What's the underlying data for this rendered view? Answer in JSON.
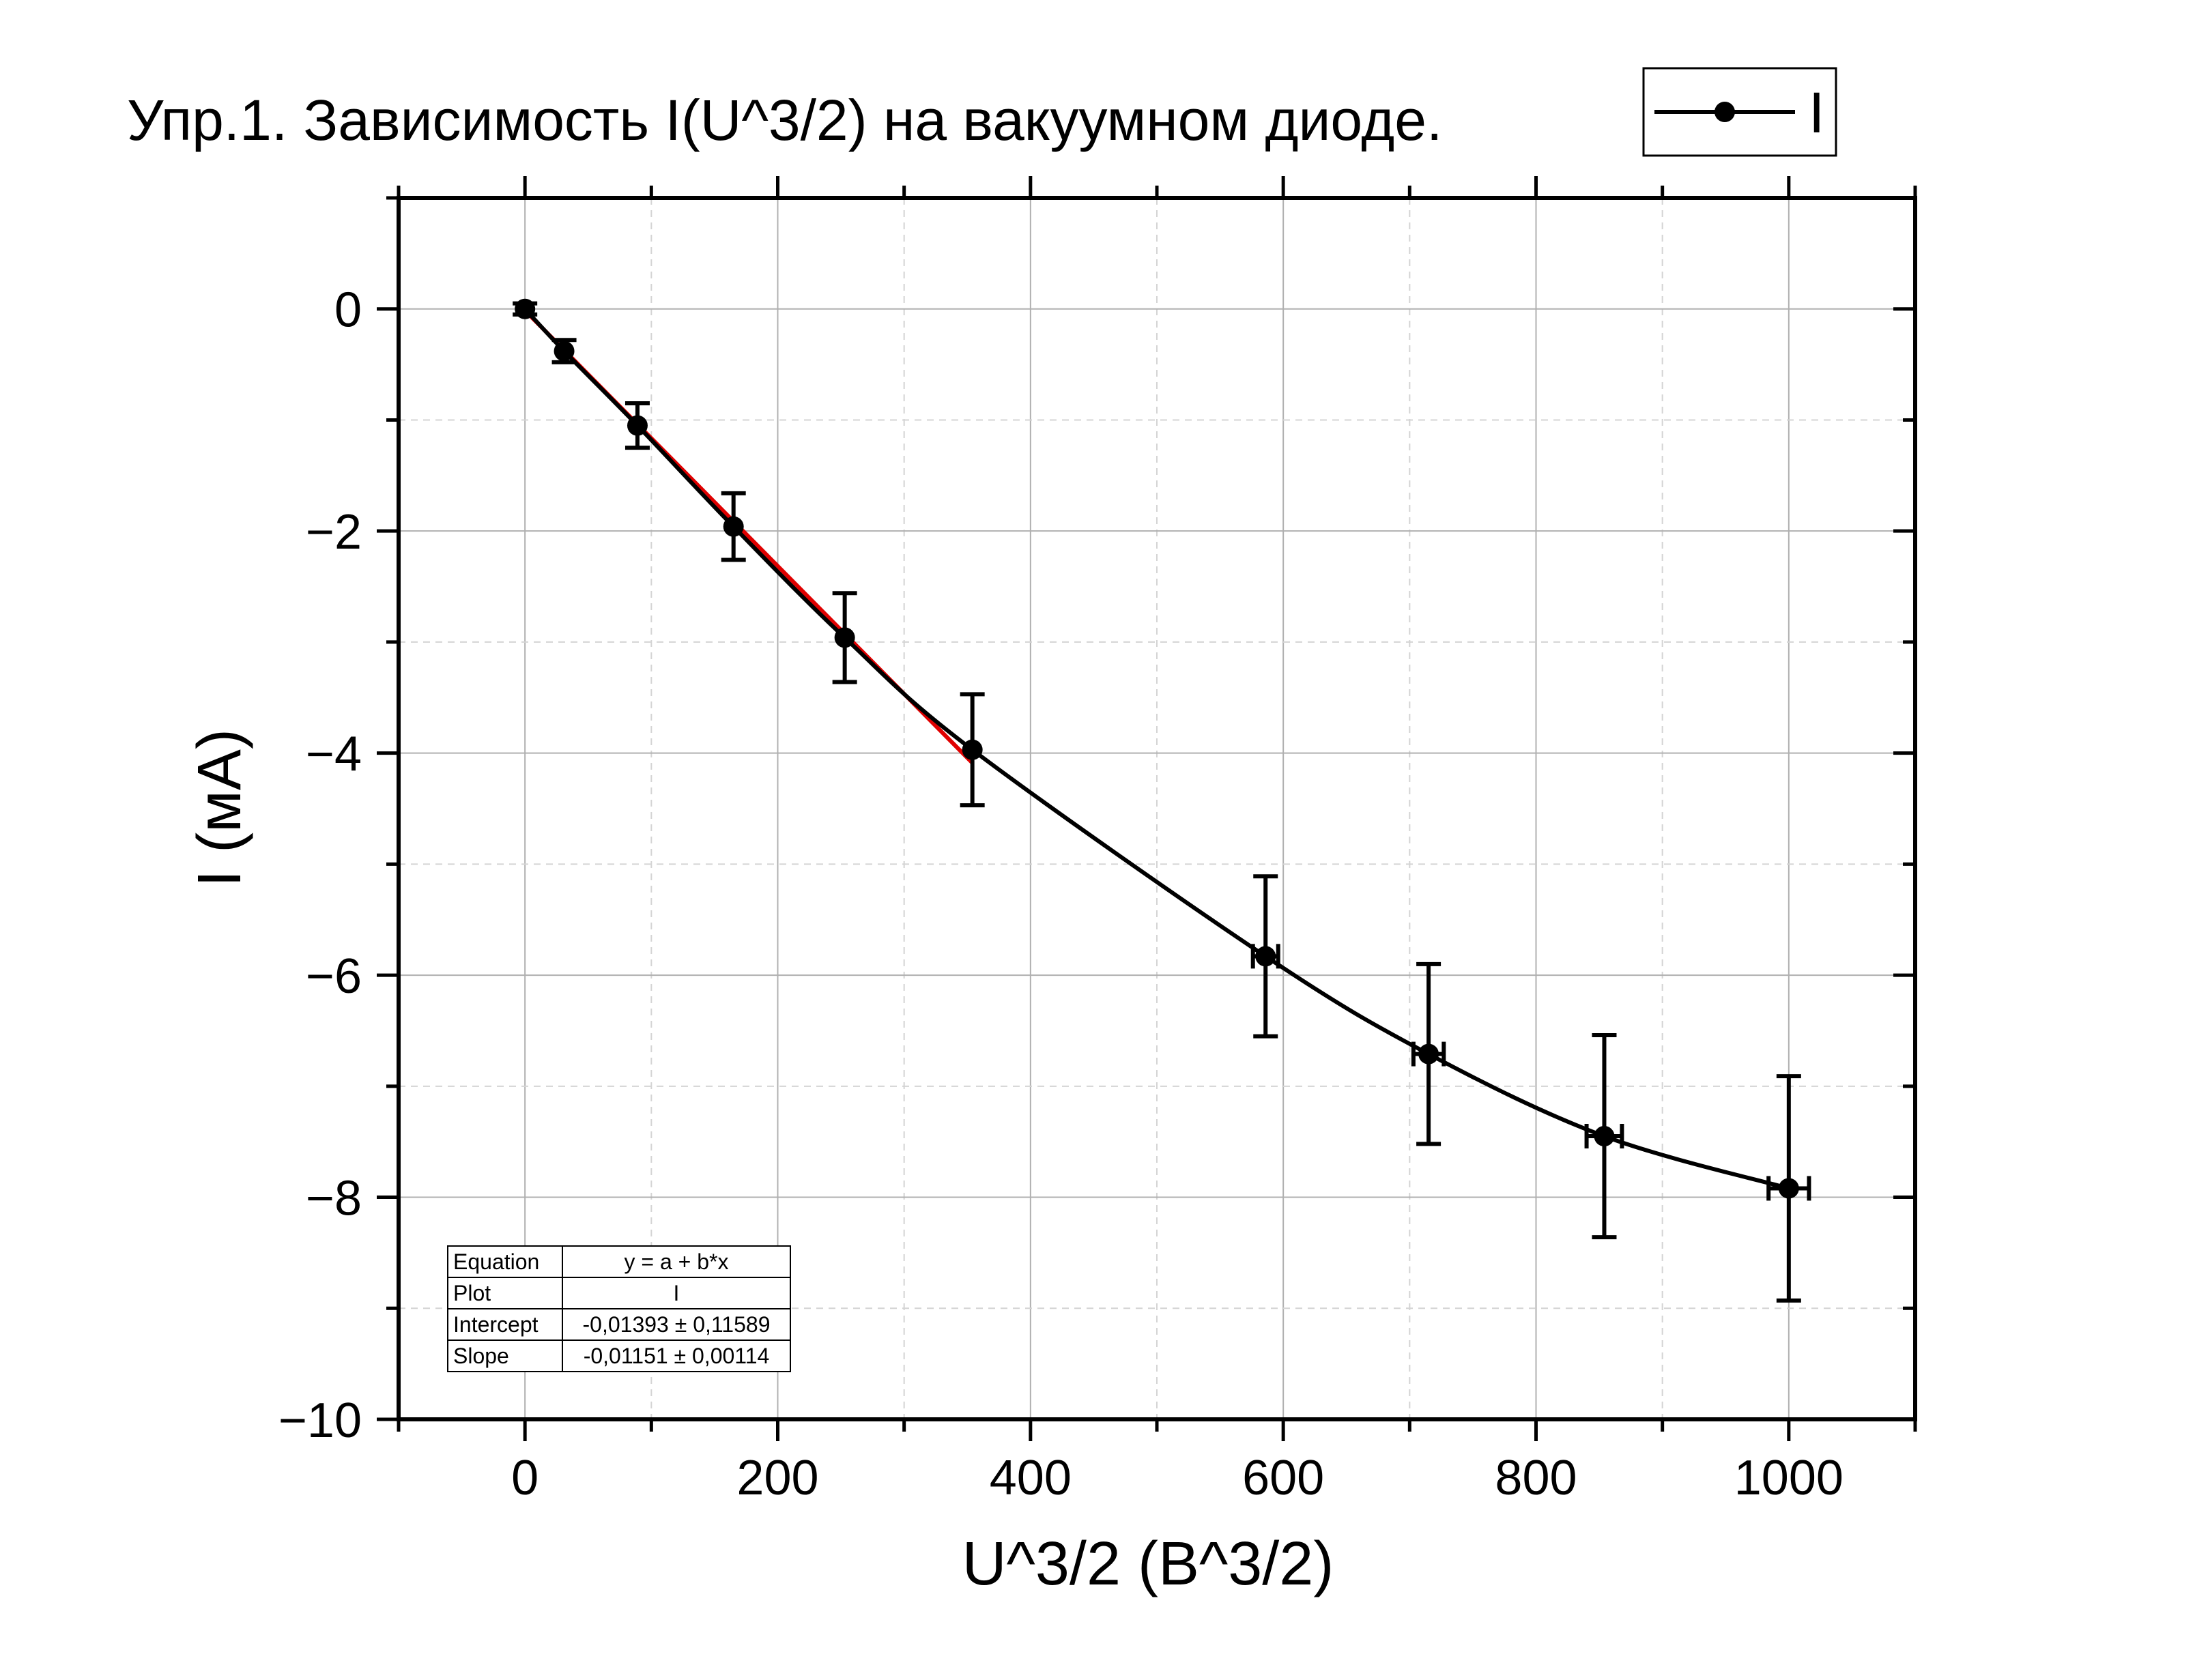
{
  "chart_data": {
    "type": "scatter",
    "title": "Упр.1. Зависимость I(U^3/2) на вакуумном диоде.",
    "xlabel": "U^3/2 (В^3/2)",
    "ylabel": "I (мА)",
    "xlim": [
      -100,
      1100
    ],
    "ylim": [
      -10,
      1
    ],
    "x_ticks": [
      0,
      200,
      400,
      600,
      800,
      1000
    ],
    "x_tick_labels": [
      "0",
      "200",
      "400",
      "600",
      "800",
      "1000"
    ],
    "y_ticks": [
      0,
      -2,
      -4,
      -6,
      -8,
      -10
    ],
    "y_tick_labels": [
      "0",
      "−2",
      "−4",
      "−6",
      "−8",
      "−10"
    ],
    "grid": true,
    "legend_position": "top-right",
    "series": [
      {
        "name": "I",
        "color": "#000000",
        "marker": "circle",
        "line": "smooth",
        "x": [
          0,
          31,
          89,
          165,
          253,
          354,
          586,
          715,
          854,
          1000
        ],
        "y": [
          0,
          -0.38,
          -1.05,
          -1.96,
          -2.96,
          -3.97,
          -5.83,
          -6.71,
          -7.45,
          -7.92
        ],
        "y_err": [
          0.05,
          0.1,
          0.2,
          0.3,
          0.4,
          0.5,
          0.72,
          0.81,
          0.91,
          1.01
        ],
        "x_err": [
          0,
          0,
          0,
          0,
          0,
          0,
          10,
          12,
          14,
          16
        ]
      },
      {
        "name": "",
        "type": "line",
        "color": "#e00000",
        "x": [
          0,
          354
        ],
        "y": [
          -0.01393,
          -4.0886
        ]
      }
    ],
    "fit_table": {
      "rows": [
        {
          "label": "Equation",
          "value": "y = a + b*x"
        },
        {
          "label": "Plot",
          "value": "I"
        },
        {
          "label": "Intercept",
          "value": "-0,01393 ± 0,11589"
        },
        {
          "label": "Slope",
          "value": "-0,01151 ± 0,00114"
        }
      ]
    }
  }
}
